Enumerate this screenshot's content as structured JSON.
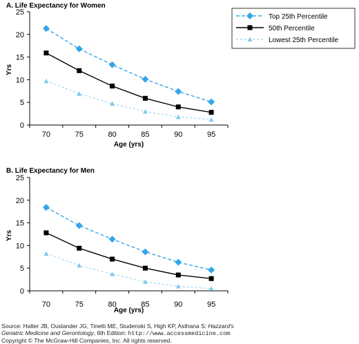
{
  "colors": {
    "top": "#33a6e8",
    "median": "#000000",
    "lowest": "#80c8ee",
    "axis": "#000000"
  },
  "chart_data": [
    {
      "type": "line",
      "title": "A. Life Expectancy for Women",
      "xlabel": "Age (yrs)",
      "ylabel": "Yrs",
      "x": [
        70,
        75,
        80,
        85,
        90,
        95
      ],
      "ylim": [
        0,
        25
      ],
      "yticks": [
        0,
        5,
        10,
        15,
        20,
        25
      ],
      "grid": false,
      "legend": "top-right",
      "series": [
        {
          "name": "Top 25th Percentile",
          "key": "top",
          "values": [
            21.3,
            16.8,
            13.3,
            10.1,
            7.4,
            5.1
          ]
        },
        {
          "name": "50th Percentile",
          "key": "median",
          "values": [
            15.9,
            12.0,
            8.6,
            5.9,
            4.0,
            2.8
          ]
        },
        {
          "name": "Lowest 25th Percentile",
          "key": "lowest",
          "values": [
            9.7,
            6.9,
            4.7,
            3.0,
            1.8,
            1.2
          ]
        }
      ]
    },
    {
      "type": "line",
      "title": "B. Life Expectancy for Men",
      "xlabel": "Age (yrs)",
      "ylabel": "Yrs",
      "x": [
        70,
        75,
        80,
        85,
        90,
        95
      ],
      "ylim": [
        0,
        25
      ],
      "yticks": [
        0,
        5,
        10,
        15,
        20,
        25
      ],
      "grid": false,
      "series": [
        {
          "name": "Top 25th Percentile",
          "key": "top",
          "values": [
            18.4,
            14.4,
            11.4,
            8.6,
            6.3,
            4.6
          ]
        },
        {
          "name": "50th Percentile",
          "key": "median",
          "values": [
            12.8,
            9.4,
            7.0,
            5.0,
            3.5,
            2.7
          ]
        },
        {
          "name": "Lowest 25th Percentile",
          "key": "lowest",
          "values": [
            8.2,
            5.6,
            3.7,
            2.0,
            1.0,
            0.5
          ]
        }
      ]
    }
  ],
  "footer": {
    "source_prefix": "Source: Halter JB, Ouslander JG, Tinetti ME, Studenski S, High KP, Asthana S: ",
    "source_book": "Hazzard's",
    "source_book2": "Geriatric Medicine and Gerontology",
    "source_edition": ", 6th Edition: ",
    "source_url": "http://www.accessmedicine.com",
    "copyright": "Copyright © The McGraw-Hill Companies, Inc. All rights reserved."
  }
}
